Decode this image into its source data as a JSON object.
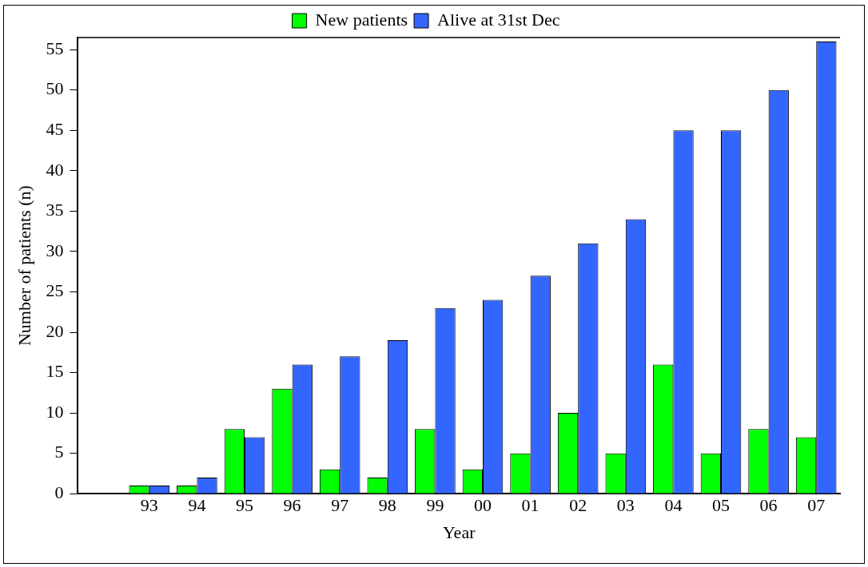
{
  "chart_data": {
    "type": "bar",
    "xlabel": "Year",
    "ylabel": "Number of patients (n)",
    "categories": [
      null,
      "93",
      "94",
      "95",
      "96",
      "97",
      "98",
      "99",
      "00",
      "01",
      "02",
      "03",
      "04",
      "05",
      "06",
      "07"
    ],
    "series": [
      {
        "name": "New patients",
        "color": "#00ff00",
        "values": [
          null,
          1,
          1,
          8,
          13,
          3,
          2,
          8,
          3,
          5,
          10,
          5,
          16,
          5,
          8,
          7
        ]
      },
      {
        "name": "Alive at 31st Dec",
        "color": "#3366ff",
        "values": [
          null,
          1,
          2,
          7,
          16,
          17,
          19,
          23,
          24,
          27,
          31,
          34,
          45,
          45,
          50,
          56
        ]
      }
    ],
    "ylim": [
      0,
      56.5
    ],
    "yticks": [
      0,
      5,
      10,
      15,
      20,
      25,
      30,
      35,
      40,
      45,
      50,
      55
    ],
    "grid": false,
    "legend": "top"
  }
}
